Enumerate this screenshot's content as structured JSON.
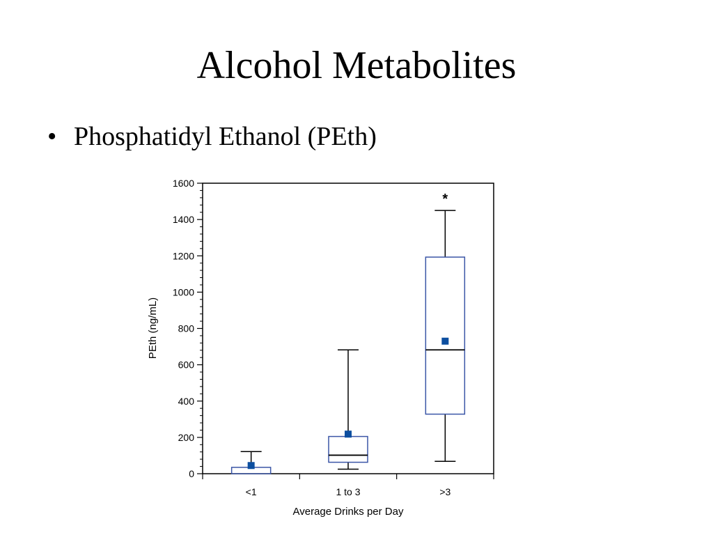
{
  "slide": {
    "title": "Alcohol Metabolites",
    "bullet_symbol": "•",
    "bullet_text": "Phosphatidyl Ethanol (PEth)"
  },
  "colors": {
    "box": "#3a55a6",
    "mean": "#0d4fa0",
    "whisker": "#000000"
  },
  "chart_data": {
    "type": "box",
    "title": "",
    "xlabel": "Average Drinks per Day",
    "ylabel": "PEth (ng/mL)",
    "ylim": [
      0,
      1600
    ],
    "yticks": [
      0,
      200,
      400,
      600,
      800,
      1000,
      1200,
      1400,
      1600
    ],
    "categories": [
      "<1",
      "1 to 3",
      ">3"
    ],
    "boxes": [
      {
        "category": "<1",
        "whisker_low": 0,
        "q1": 0,
        "median": 0,
        "q3": 35,
        "whisker_high": 122,
        "mean": 45,
        "annotation": ""
      },
      {
        "category": "1 to 3",
        "whisker_low": 25,
        "q1": 63,
        "median": 102,
        "q3": 205,
        "whisker_high": 682,
        "mean": 218,
        "annotation": ""
      },
      {
        "category": ">3",
        "whisker_low": 68,
        "q1": 328,
        "median": 682,
        "q3": 1193,
        "whisker_high": 1450,
        "mean": 730,
        "annotation": "*"
      }
    ]
  }
}
